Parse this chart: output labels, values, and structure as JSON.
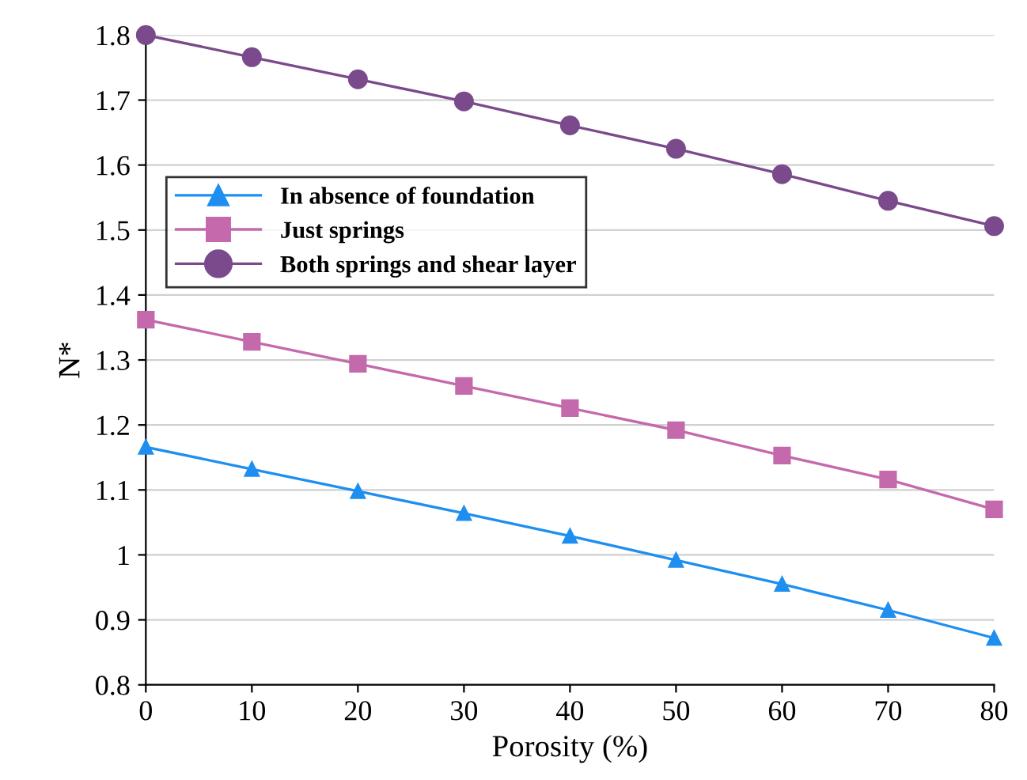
{
  "chart_data": {
    "type": "line",
    "xlabel": "Porosity (%)",
    "ylabel": "N*",
    "x": [
      0,
      10,
      20,
      30,
      40,
      50,
      60,
      70,
      80
    ],
    "series": [
      {
        "name": "In absence of foundation",
        "color": "#1e8ff0",
        "marker": "triangle",
        "values": [
          1.166,
          1.132,
          1.098,
          1.064,
          1.029,
          0.992,
          0.955,
          0.915,
          0.872
        ]
      },
      {
        "name": "Just springs",
        "color": "#c46aac",
        "marker": "square",
        "values": [
          1.362,
          1.328,
          1.294,
          1.26,
          1.226,
          1.192,
          1.153,
          1.116,
          1.07
        ]
      },
      {
        "name": "Both springs and shear layer",
        "color": "#7b4a8c",
        "marker": "circle",
        "values": [
          1.8,
          1.766,
          1.732,
          1.698,
          1.661,
          1.625,
          1.586,
          1.545,
          1.506
        ]
      }
    ],
    "xlim": [
      0,
      80
    ],
    "xticks": [
      0,
      10,
      20,
      30,
      40,
      50,
      60,
      70,
      80
    ],
    "ylim": [
      0.8,
      1.8
    ],
    "yticks": [
      {
        "value": 0.8,
        "label": "0.8"
      },
      {
        "value": 0.9,
        "label": "0.9"
      },
      {
        "value": 1,
        "label": "1"
      },
      {
        "value": 1.1,
        "label": "1.1"
      },
      {
        "value": 1.2,
        "label": "1.2"
      },
      {
        "value": 1.3,
        "label": "1.3"
      },
      {
        "value": 1.4,
        "label": "1.4"
      },
      {
        "value": 1.5,
        "label": "1.5"
      },
      {
        "value": 1.6,
        "label": "1.6"
      },
      {
        "value": 1.7,
        "label": "1.7"
      },
      {
        "value": 1.8,
        "label": "1.8"
      }
    ],
    "grid": "y",
    "legend": "upper left",
    "line_style": "solid"
  }
}
